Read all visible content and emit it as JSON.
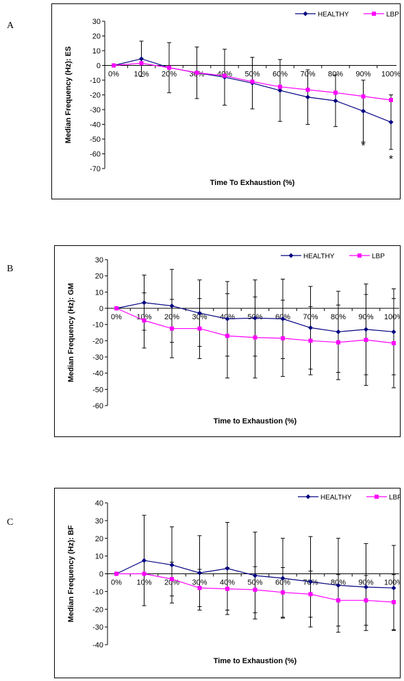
{
  "panels": [
    {
      "letter": "A"
    },
    {
      "letter": "B"
    },
    {
      "letter": "C"
    }
  ],
  "chart_data": [
    {
      "type": "line",
      "ylabel": "Median Frequency (Hz): ES",
      "xlabel": "Time To Exhaustion (%)",
      "categories": [
        "0%",
        "10%",
        "20%",
        "30%",
        "40%",
        "50%",
        "60%",
        "70%",
        "80%",
        "90%",
        "100%"
      ],
      "ylim": [
        -70,
        30
      ],
      "yticks": [
        30,
        20,
        10,
        0,
        -10,
        -20,
        -30,
        -40,
        -50,
        -60,
        -70
      ],
      "legend_position": "top-right",
      "series": [
        {
          "name": "HEALTHY",
          "color": "#000080",
          "marker": "diamond",
          "values": [
            0,
            4.5,
            -1.5,
            -5,
            -8,
            -12,
            -17,
            -21.5,
            -24,
            -31,
            -38.5
          ],
          "error": [
            0,
            12,
            17,
            17.5,
            19,
            17.5,
            21,
            18.5,
            17.5,
            21,
            18.5
          ]
        },
        {
          "name": "LBP",
          "color": "#ff00ff",
          "marker": "square",
          "values": [
            0,
            1.5,
            -1.5,
            -5,
            -7,
            -11,
            -14.5,
            -16.5,
            -18.5,
            -21,
            -23.5
          ],
          "error": []
        }
      ],
      "annotations": [
        {
          "category": "90%",
          "text": "*",
          "y": -57
        },
        {
          "category": "100%",
          "text": "*",
          "y": -66
        }
      ]
    },
    {
      "type": "line",
      "ylabel": "Median Frequency (Hz): GM",
      "xlabel": "Time to Exhaustion (%)",
      "categories": [
        "0%",
        "10%",
        "20%",
        "30%",
        "40%",
        "50%",
        "60%",
        "70%",
        "80%",
        "90%",
        "100%"
      ],
      "ylim": [
        -60,
        30
      ],
      "yticks": [
        30,
        20,
        10,
        0,
        -10,
        -20,
        -30,
        -40,
        -50,
        -60
      ],
      "legend_position": "top-right",
      "series": [
        {
          "name": "HEALTHY",
          "color": "#000080",
          "marker": "diamond",
          "values": [
            0,
            3.5,
            1.5,
            -3,
            -6.5,
            -6,
            -6.5,
            -12,
            -14.5,
            -13,
            -14.5
          ],
          "error": [
            0,
            17,
            22.5,
            20.5,
            23,
            23.5,
            24.5,
            25.5,
            25,
            28,
            26.5
          ]
        },
        {
          "name": "LBP",
          "color": "#ff00ff",
          "marker": "square",
          "values": [
            0,
            -7.5,
            -12.5,
            -12.5,
            -17,
            -18,
            -18.5,
            -20,
            -21,
            -19.5,
            -21.5
          ],
          "error": [
            0,
            17,
            18,
            18.5,
            26,
            25,
            23.5,
            21,
            23,
            28,
            27.5
          ]
        }
      ],
      "annotations": []
    },
    {
      "type": "line",
      "ylabel": "Median Frequency (Hz): BF",
      "xlabel": "Time to Exhaustion (%)",
      "categories": [
        "0%",
        "10%",
        "20%",
        "30%",
        "40%",
        "50%",
        "60%",
        "70%",
        "80%",
        "90%",
        "100%"
      ],
      "ylim": [
        -40,
        40
      ],
      "yticks": [
        40,
        30,
        20,
        10,
        0,
        -10,
        -20,
        -30,
        -40
      ],
      "legend_position": "top-right",
      "series": [
        {
          "name": "HEALTHY",
          "color": "#000080",
          "marker": "diamond",
          "values": [
            0,
            7.5,
            5,
            0.5,
            3,
            -1,
            -2.5,
            -4.5,
            -6.5,
            -7.5,
            -8
          ],
          "error": [
            0,
            25.5,
            21.5,
            21,
            26,
            24.5,
            22.5,
            25.5,
            26.5,
            24.5,
            24
          ]
        },
        {
          "name": "LBP",
          "color": "#ff00ff",
          "marker": "square",
          "values": [
            0,
            0,
            -3,
            -8,
            -8.5,
            -9,
            -10.5,
            -11.5,
            -15,
            -15,
            -16
          ],
          "error": [
            0,
            0,
            9.5,
            10.5,
            12,
            13,
            14,
            13,
            14.5,
            14,
            15.5
          ]
        }
      ],
      "annotations": []
    }
  ]
}
